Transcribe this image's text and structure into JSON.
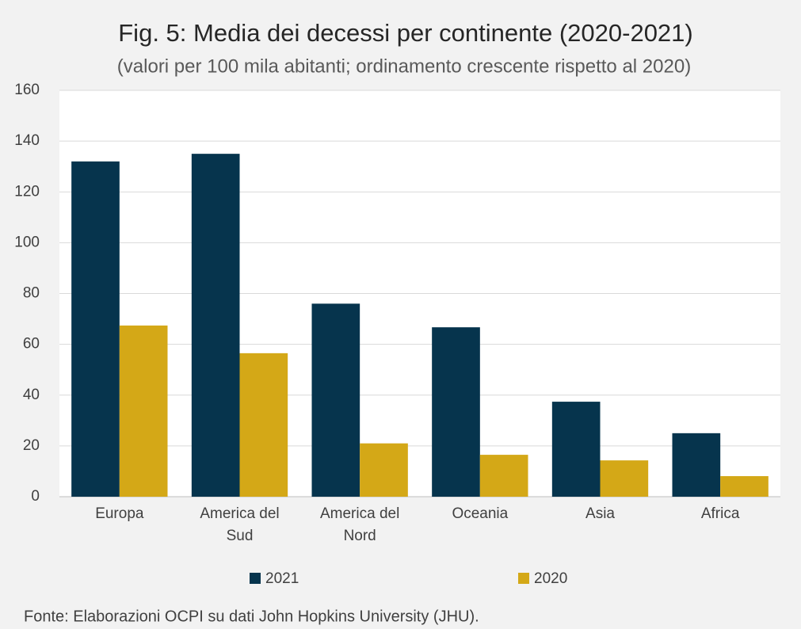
{
  "chart_data": {
    "type": "bar",
    "title": "Fig. 5: Media dei decessi per continente (2020-2021)",
    "subtitle": "(valori per 100 mila abitanti; ordinamento crescente rispetto al 2020)",
    "categories": [
      "Europa",
      "America del Sud",
      "America del Nord",
      "Oceania",
      "Asia",
      "Africa"
    ],
    "series": [
      {
        "name": "2021",
        "color": "#06344d",
        "values": [
          132,
          135,
          76,
          66.7,
          37.4,
          25
        ]
      },
      {
        "name": "2020",
        "color": "#d4a817",
        "values": [
          67.4,
          56.5,
          21,
          16.5,
          14.3,
          8.1
        ]
      }
    ],
    "ylim": [
      0,
      160
    ],
    "yticks": [
      0,
      20,
      40,
      60,
      80,
      100,
      120,
      140,
      160
    ],
    "grid": true,
    "legend": "bottom",
    "source": "Fonte: Elaborazioni OCPI su dati John Hopkins University (JHU)."
  }
}
